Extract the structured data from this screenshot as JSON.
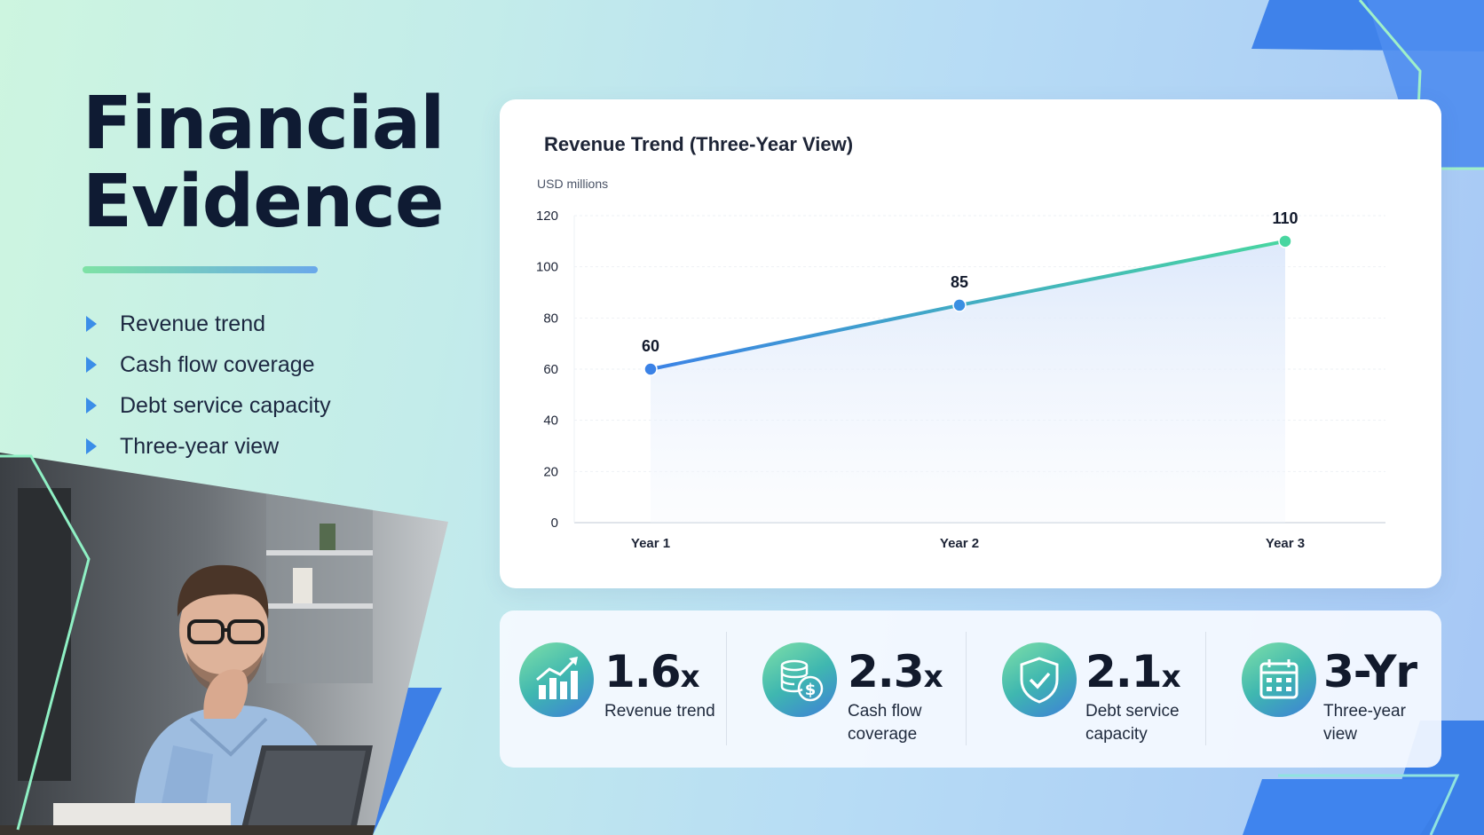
{
  "slide": {
    "title_line1": "Financial",
    "title_line2": "Evidence",
    "bullets": [
      "Revenue trend",
      "Cash flow coverage",
      "Debt service capacity",
      "Three-year view"
    ]
  },
  "chart_data": {
    "type": "line",
    "title": "Revenue Trend (Three-Year View)",
    "ylabel": "USD millions",
    "xlabel": "",
    "categories": [
      "Year 1",
      "Year 2",
      "Year 3"
    ],
    "series": [
      {
        "values": [
          60,
          85,
          110
        ]
      }
    ],
    "data_labels": [
      "60",
      "85",
      "110"
    ],
    "ylim": [
      0,
      120
    ],
    "yticks": [
      0,
      20,
      40,
      60,
      80,
      100,
      120
    ],
    "grid": true,
    "area_fill": true,
    "colors": {
      "line_start": "#3b82e6",
      "line_end": "#48d6a0",
      "point_start": "#3b82e6",
      "point_end": "#48d6a0"
    }
  },
  "kpis": [
    {
      "value": "1.6",
      "unit": "x",
      "label_line1": "Revenue trend",
      "label_line2": "",
      "icon": "bar-chart-icon"
    },
    {
      "value": "2.3",
      "unit": "x",
      "label_line1": "Cash flow",
      "label_line2": "coverage",
      "icon": "coins-dollar-icon"
    },
    {
      "value": "2.1",
      "unit": "x",
      "label_line1": "Debt service",
      "label_line2": "capacity",
      "icon": "shield-check-icon"
    },
    {
      "value": "3-Yr",
      "unit": "",
      "label_line1": "Three-year",
      "label_line2": "view",
      "icon": "calendar-icon"
    }
  ],
  "photo": {
    "icon": "person-at-laptop-photo"
  }
}
